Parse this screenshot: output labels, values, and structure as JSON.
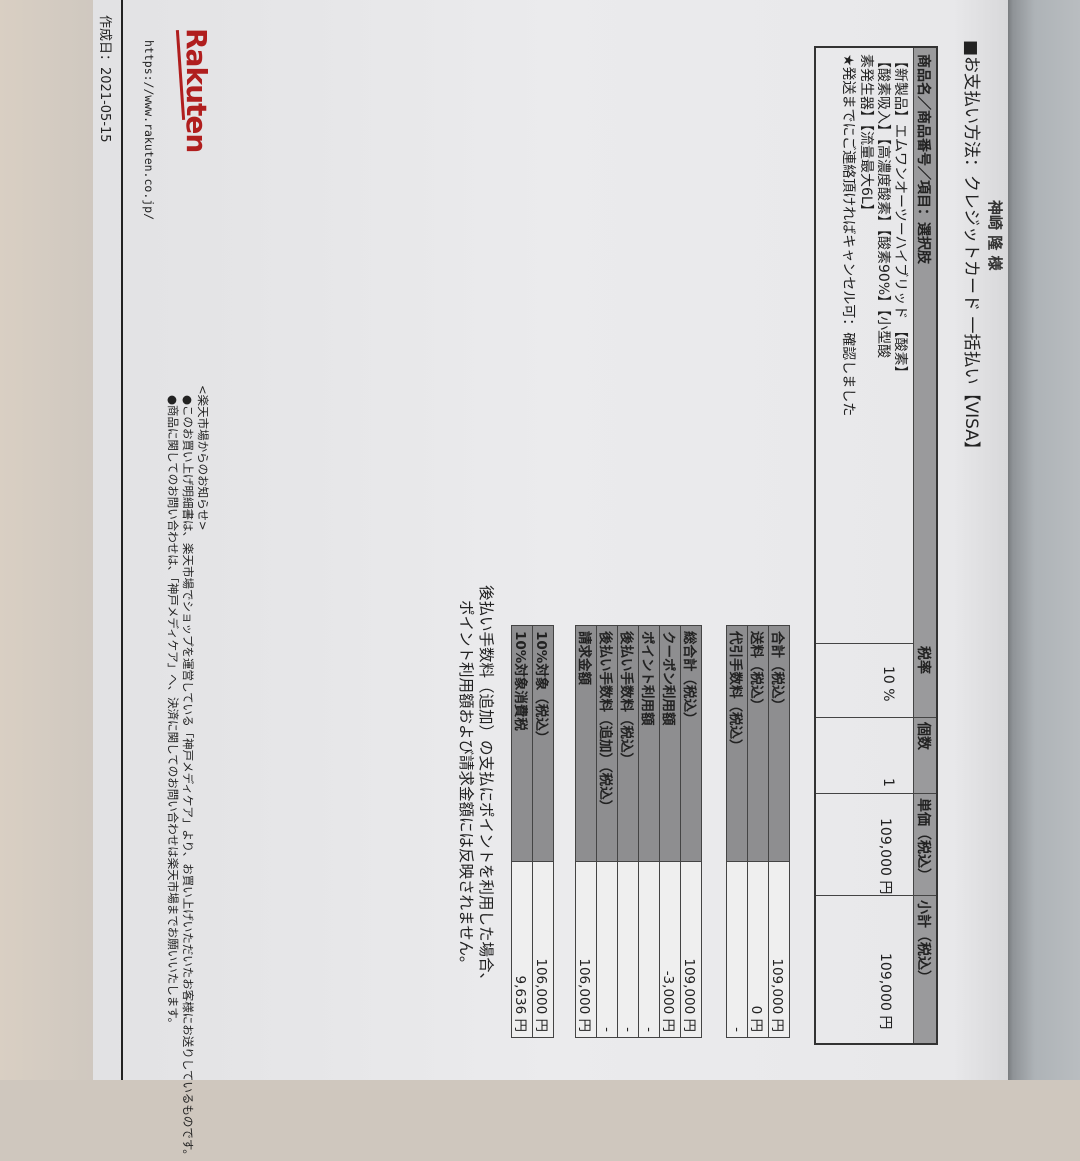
{
  "recipient": "神崎 隆 様",
  "payment_method": "■お支払い方法：クレジットカード 一括払い【VISA】",
  "product_table": {
    "headers": [
      "商品名／商品番号／項目：選択肢",
      "税率",
      "個数",
      "単価（税込）",
      "小計（税込）"
    ],
    "product_lines": [
      "【新製品】エムワンオーツーハイブリッド 【酸素】",
      "【酸素吸入】【高濃度酸素】【酸素90%】【小型酸",
      "素発生器】【流量最大6L】",
      "★発送までにご連絡頂ければキャンセル可：確認しました"
    ],
    "tax_rate": "10 %",
    "quantity": "1",
    "unit_price": "109,000 円",
    "subtotal": "109,000 円"
  },
  "summary_1": [
    {
      "label": "合計（税込）",
      "value": "109,000 円"
    },
    {
      "label": "送料（税込）",
      "value": "0 円"
    },
    {
      "label": "代引手数料（税込）",
      "value": "-"
    }
  ],
  "summary_2": [
    {
      "label": "総合計（税込）",
      "value": "109,000 円"
    },
    {
      "label": "クーポン利用額",
      "value": "-3,000 円"
    },
    {
      "label": "ポイント利用額",
      "value": "-"
    },
    {
      "label": "後払い手数料（税込）",
      "value": "-"
    },
    {
      "label": "後払い手数料（追加）（税込）",
      "value": "-"
    },
    {
      "label": "請求金額",
      "value": "106,000 円"
    }
  ],
  "summary_3": [
    {
      "label": "10%対象（税込）",
      "value": "106,000 円"
    },
    {
      "label": "10%対象消費税",
      "value": "9,636 円"
    }
  ],
  "notes": [
    "後払い手数料（追加）の支払にポイントを利用した場合、",
    "ポイント利用額および請求金額には反映されません。"
  ],
  "notice": {
    "title": "<楽天市場からのお知らせ>",
    "lines": [
      "●このお買い上げ明細書は、楽天市場でショップを運営している「神戸メディケア」より、お買い上げいただいたお客様にお送りしているものです。",
      "●商品に関してのお問い合わせは、「神戸メディケア」へ、決済に関してのお問い合わせは楽天市場までお願いいたします。"
    ]
  },
  "footer": {
    "logo": "Rakuten",
    "url": "https://www.rakuten.co.jp/",
    "created_date": "作成日：2021-05-15"
  },
  "colors": {
    "brand": "#b01e1e",
    "label_fill": "#8e8e90",
    "paper": "#ebebed"
  }
}
